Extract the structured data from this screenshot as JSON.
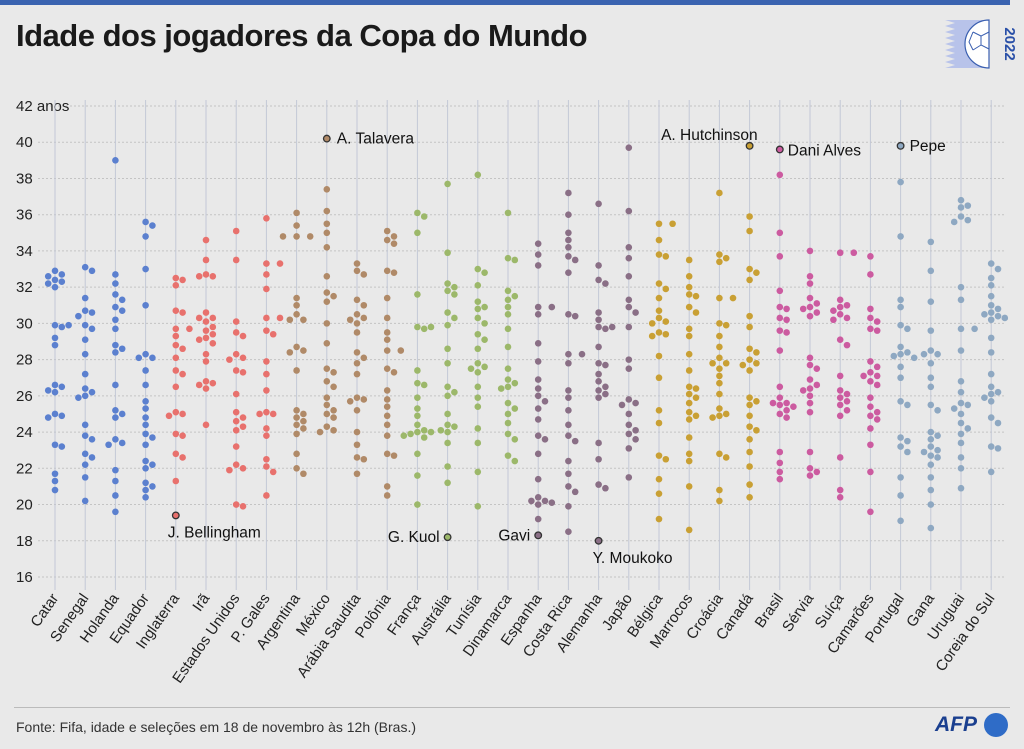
{
  "title": "Idade dos jogadores da Copa do Mundo",
  "logo_text": "2022",
  "source": "Fonte: Fifa, idade e seleções em 18 de novembro às 12h (Bras.)",
  "brand": "AFP",
  "colors": {
    "accent": "#3a63b0",
    "g1": "#5b80cf",
    "g2": "#e8716d",
    "g3": "#b08a68",
    "g4": "#9cb86a",
    "g5": "#8a6f86",
    "g6": "#c9a034",
    "g7": "#cc5ba0",
    "g8": "#8ea8c2"
  },
  "chart_data": {
    "type": "scatter",
    "title": "Idade dos jogadores da Copa do Mundo",
    "ylabel": "anos",
    "ylim": [
      16,
      42
    ],
    "yticks": [
      "42 anos",
      "40",
      "38",
      "36",
      "34",
      "32",
      "30",
      "28",
      "26",
      "24",
      "22",
      "20",
      "18",
      "16"
    ],
    "grid": true,
    "teams": [
      {
        "name": "Catar",
        "group": "g1",
        "ages": [
          32.9,
          32.7,
          32.6,
          32.4,
          32.3,
          32.2,
          32,
          29.9,
          29.9,
          29.8,
          29.2,
          28.8,
          26.6,
          26.5,
          26.3,
          26.2,
          25,
          24.9,
          24.8,
          23.3,
          23.2,
          21.7,
          21.3,
          20.8
        ]
      },
      {
        "name": "Senegal",
        "group": "g1",
        "ages": [
          33.1,
          32.9,
          31.4,
          30.7,
          30.6,
          30.4,
          29.9,
          29.7,
          29.1,
          28.3,
          27.2,
          26.4,
          26.2,
          26,
          25.9,
          24.4,
          23.8,
          23.6,
          22.8,
          22.6,
          22.2,
          21.5,
          20.2
        ]
      },
      {
        "name": "Holanda",
        "group": "g1",
        "ages": [
          39,
          32.7,
          32.2,
          31.6,
          31.3,
          30.9,
          30.7,
          30.2,
          29.7,
          28.8,
          28.6,
          28.4,
          26.6,
          25.2,
          25,
          24.8,
          23.6,
          23.4,
          23.3,
          21.9,
          21.3,
          20.5,
          19.6
        ]
      },
      {
        "name": "Equador",
        "group": "g1",
        "ages": [
          35.6,
          35.4,
          34.8,
          33,
          31,
          28.3,
          28.1,
          28.1,
          27.4,
          26.6,
          25.7,
          25.3,
          24.8,
          24.4,
          23.9,
          23.7,
          23.3,
          22.4,
          22.2,
          22,
          21.2,
          21,
          20.8,
          20.4
        ]
      },
      {
        "name": "Inglaterra",
        "group": "g2",
        "ages": [
          32.5,
          32.4,
          32.1,
          30.7,
          30.6,
          29.7,
          29.7,
          29.3,
          28.8,
          28.6,
          28.1,
          27.4,
          27.2,
          26.5,
          25.1,
          25,
          24.9,
          23.9,
          23.8,
          22.8,
          22.6,
          21.3,
          19.4
        ]
      },
      {
        "name": "Irã",
        "group": "g2",
        "ages": [
          34.6,
          33.5,
          32.7,
          32.6,
          32.6,
          30.6,
          30.3,
          30.3,
          30.1,
          29.8,
          29.6,
          29.4,
          29.2,
          29.1,
          28.9,
          28.3,
          27.9,
          26.8,
          26.7,
          26.6,
          26.4,
          24.4
        ]
      },
      {
        "name": "Estados Unidos",
        "group": "g2",
        "ages": [
          35.1,
          33.5,
          30.1,
          29.5,
          29.3,
          28.3,
          28.1,
          28,
          27.4,
          27.3,
          26.1,
          25.1,
          24.8,
          24.6,
          24.3,
          24.1,
          23.2,
          22.2,
          22,
          21.9,
          20,
          19.9
        ]
      },
      {
        "name": "P. Gales",
        "group": "g2",
        "ages": [
          35.8,
          33.3,
          33.3,
          32.7,
          31.9,
          30.3,
          30.3,
          29.6,
          29.4,
          27.9,
          27.2,
          26.3,
          25.1,
          25,
          25,
          24.2,
          23.8,
          22.5,
          22.1,
          21.8,
          20.5
        ]
      },
      {
        "name": "Argentina",
        "group": "g3",
        "ages": [
          36.1,
          35.4,
          34.8,
          34.8,
          34.8,
          31.4,
          31,
          30.5,
          30.2,
          30.2,
          28.7,
          28.5,
          28.4,
          27.4,
          25.2,
          25,
          24.8,
          24.6,
          24.4,
          24.2,
          23.9,
          22.8,
          22,
          21.7
        ]
      },
      {
        "name": "México",
        "group": "g3",
        "ages": [
          40.2,
          37.4,
          36.2,
          35.5,
          35,
          34.2,
          32.6,
          31.7,
          31.5,
          31.2,
          30,
          28.9,
          27.5,
          27.3,
          26.8,
          26.5,
          25.9,
          25.5,
          25.2,
          25,
          24.8,
          24.3,
          24.1,
          24
        ]
      },
      {
        "name": "Arábia Saudita",
        "group": "g3",
        "ages": [
          33.3,
          32.9,
          32.7,
          31.3,
          31,
          30.5,
          30.3,
          30.2,
          30,
          29.5,
          28.4,
          28.1,
          27.8,
          27.2,
          25.9,
          25.8,
          25.7,
          25.2,
          24,
          23.3,
          22.6,
          22.5,
          21.7
        ]
      },
      {
        "name": "Polônia",
        "group": "g3",
        "ages": [
          35.1,
          34.8,
          34.6,
          34.4,
          32.9,
          32.8,
          31.4,
          30.3,
          29.5,
          29.1,
          28.5,
          28.5,
          27.5,
          27.3,
          26.3,
          25.8,
          25.4,
          24.9,
          24.4,
          23.8,
          22.8,
          22.7,
          21,
          20.5
        ]
      },
      {
        "name": "França",
        "group": "g4",
        "ages": [
          36.1,
          35.9,
          35,
          31.6,
          29.8,
          29.8,
          29.7,
          27.4,
          26.7,
          26.6,
          25.9,
          25.3,
          24.9,
          24.4,
          24.1,
          24,
          24,
          23.9,
          23.8,
          23.7,
          22.8,
          21.6,
          20
        ]
      },
      {
        "name": "Austrália",
        "group": "g4",
        "ages": [
          37.7,
          33.9,
          32.2,
          32,
          31.8,
          31.6,
          30.6,
          30.3,
          29.9,
          28.6,
          27.8,
          26.5,
          26.2,
          26,
          25,
          24.4,
          24.3,
          24.1,
          24,
          23.4,
          22.1,
          21.2,
          18.2
        ]
      },
      {
        "name": "Tunísia",
        "group": "g4",
        "ages": [
          38.2,
          33,
          32.8,
          32.1,
          31.2,
          30.9,
          30.8,
          30.3,
          30,
          29.4,
          29.1,
          28.6,
          27.8,
          27.6,
          27.5,
          27.3,
          26.5,
          25.9,
          25.4,
          24.2,
          23.4,
          21.8,
          19.9
        ]
      },
      {
        "name": "Dinamarca",
        "group": "g4",
        "ages": [
          36.1,
          33.6,
          33.5,
          31.8,
          31.5,
          31.3,
          30.9,
          30.5,
          29.7,
          28.7,
          27.5,
          26.9,
          26.7,
          26.5,
          26.4,
          25.6,
          25.3,
          25,
          24.5,
          23.9,
          23.6,
          22.7,
          22.4
        ]
      },
      {
        "name": "Espanha",
        "group": "g5",
        "ages": [
          34.4,
          33.8,
          33.2,
          30.9,
          30.9,
          30.5,
          28.9,
          27.9,
          26.9,
          26.4,
          26,
          25.7,
          25.3,
          24.7,
          23.8,
          23.6,
          22.8,
          21.4,
          20.4,
          20.2,
          20.2,
          20.1,
          20,
          19.2,
          18.3
        ]
      },
      {
        "name": "Costa Rica",
        "group": "g5",
        "ages": [
          37.2,
          36,
          35,
          34.6,
          34.2,
          33.7,
          33.5,
          32.8,
          30.5,
          30.4,
          28.3,
          28.3,
          27.8,
          26.3,
          25.9,
          25.2,
          24.4,
          23.8,
          23.5,
          22.4,
          21.7,
          21,
          20.7,
          19.9,
          18.5
        ]
      },
      {
        "name": "Alemanha",
        "group": "g5",
        "ages": [
          36.6,
          33.2,
          32.4,
          32.2,
          30.6,
          30.2,
          29.8,
          29.8,
          29.7,
          28.7,
          27.8,
          27.7,
          27.2,
          26.8,
          26.5,
          26.3,
          26.1,
          25.9,
          23.4,
          22.5,
          21.1,
          20.9,
          18
        ]
      },
      {
        "name": "Japão",
        "group": "g5",
        "ages": [
          39.7,
          36.2,
          34.2,
          33.6,
          32.6,
          31.3,
          30.9,
          30.6,
          29.8,
          28,
          27.5,
          25.8,
          25.6,
          25.5,
          25,
          24.4,
          24.1,
          23.9,
          23.6,
          23.1,
          21.5
        ]
      },
      {
        "name": "Bélgica",
        "group": "g6",
        "ages": [
          35.5,
          35.5,
          34.6,
          33.8,
          33.7,
          32.2,
          31.9,
          31.4,
          30.7,
          30.3,
          30.1,
          30,
          29.5,
          29.4,
          29.3,
          28.2,
          27,
          25.2,
          24.5,
          22.7,
          22.5,
          21.4,
          20.6,
          19.2
        ]
      },
      {
        "name": "Marrocos",
        "group": "g6",
        "ages": [
          33.5,
          32.6,
          32,
          31.6,
          31.5,
          30.9,
          30.6,
          29.7,
          29.3,
          28.3,
          27.4,
          26.5,
          26.4,
          26.1,
          25.9,
          25.6,
          25.1,
          24.9,
          24.7,
          23.7,
          22.8,
          22.4,
          21,
          18.6
        ]
      },
      {
        "name": "Croácia",
        "group": "g6",
        "ages": [
          37.2,
          33.8,
          33.6,
          33.4,
          31.4,
          31.4,
          30,
          29.9,
          29.3,
          28.7,
          28.1,
          27.8,
          27.8,
          27.5,
          27.1,
          26.7,
          26.1,
          25.3,
          25,
          24.9,
          24.8,
          22.8,
          22.6,
          20.8,
          20.2
        ]
      },
      {
        "name": "Canadá",
        "group": "g6",
        "ages": [
          39.8,
          35.9,
          35.1,
          33,
          32.8,
          32.4,
          30.4,
          29.8,
          28.6,
          28.4,
          28,
          27.8,
          27.7,
          27.4,
          25.9,
          25.7,
          25.5,
          24.9,
          24.3,
          24.1,
          23.6,
          22.9,
          22.1,
          21.1,
          20.4
        ]
      },
      {
        "name": "Brasil",
        "group": "g7",
        "ages": [
          39.6,
          38.2,
          35,
          33.7,
          31.8,
          30.9,
          30.8,
          30.3,
          30.2,
          29.6,
          29.5,
          28.5,
          26.5,
          25.9,
          25.6,
          25.6,
          25.5,
          25.4,
          25.2,
          25,
          24.8,
          22.9,
          22.3,
          21.8,
          21.4
        ]
      },
      {
        "name": "Sérvia",
        "group": "g7",
        "ages": [
          34,
          32.6,
          32.2,
          31.4,
          31.1,
          30.9,
          30.8,
          30.6,
          30.4,
          28.1,
          27.7,
          27.5,
          26.9,
          26.6,
          26.4,
          26.3,
          26,
          25.6,
          25.1,
          22.9,
          22,
          21.8,
          21.6
        ]
      },
      {
        "name": "Suíça",
        "group": "g7",
        "ages": [
          33.9,
          33.9,
          31.3,
          31,
          30.9,
          30.7,
          30.5,
          30.3,
          30.2,
          29.1,
          28.8,
          27.1,
          26.3,
          26.1,
          25.9,
          25.7,
          25.5,
          25.2,
          24.9,
          22.6,
          20.8,
          20.4
        ]
      },
      {
        "name": "Camarões",
        "group": "g7",
        "ages": [
          33.7,
          32.7,
          30.8,
          30.3,
          30.1,
          29.7,
          29.6,
          27.9,
          27.6,
          27.3,
          27.1,
          27.1,
          26.8,
          26.6,
          25.9,
          25.4,
          25.1,
          24.9,
          24.7,
          24.2,
          23.3,
          21.8,
          19.6
        ]
      },
      {
        "name": "Portugal",
        "group": "g8",
        "ages": [
          39.8,
          37.8,
          34.8,
          31.3,
          30.9,
          29.9,
          29.7,
          28.7,
          28.4,
          28.3,
          28.2,
          28.1,
          27.6,
          27,
          25.7,
          25.5,
          23.7,
          23.5,
          23.2,
          22.9,
          21.5,
          20.5,
          19.1
        ]
      },
      {
        "name": "Gana",
        "group": "g8",
        "ages": [
          34.5,
          32.9,
          31.2,
          29.6,
          28.5,
          28.3,
          28.3,
          27.8,
          27,
          26.5,
          25.5,
          25.2,
          24,
          23.8,
          23.6,
          23.2,
          23,
          22.9,
          22.7,
          22.6,
          22.2,
          21.5,
          20.8,
          20,
          18.7
        ]
      },
      {
        "name": "Uruguai",
        "group": "g8",
        "ages": [
          36.8,
          36.5,
          36.4,
          35.9,
          35.7,
          35.6,
          32,
          31.3,
          29.7,
          29.7,
          28.5,
          26.8,
          26.2,
          25.6,
          25.5,
          25.3,
          25,
          24.5,
          24.2,
          23.9,
          23.4,
          22.6,
          22,
          20.9
        ]
      },
      {
        "name": "Coreia do Sul",
        "group": "g8",
        "ages": [
          33.3,
          33,
          32.5,
          32.1,
          31.5,
          31,
          30.8,
          30.6,
          30.5,
          30.4,
          30.3,
          30.2,
          29.2,
          28.4,
          27.2,
          26.5,
          26.2,
          26.1,
          25.9,
          25.7,
          24.8,
          24.5,
          23.2,
          23.1,
          21.8
        ]
      }
    ],
    "annotations": [
      {
        "team": "México",
        "name": "A. Talavera",
        "age": 40.2
      },
      {
        "team": "Inglaterra",
        "name": "J. Bellingham",
        "age": 19.4
      },
      {
        "team": "Austrália",
        "name": "G. Kuol",
        "age": 18.2
      },
      {
        "team": "Espanha",
        "name": "Gavi",
        "age": 18.3
      },
      {
        "team": "Alemanha",
        "name": "Y. Moukoko",
        "age": 18.0
      },
      {
        "team": "Canadá",
        "name": "A. Hutchinson",
        "age": 39.8
      },
      {
        "team": "Brasil",
        "name": "Dani Alves",
        "age": 39.6
      },
      {
        "team": "Portugal",
        "name": "Pepe",
        "age": 39.8
      }
    ]
  }
}
